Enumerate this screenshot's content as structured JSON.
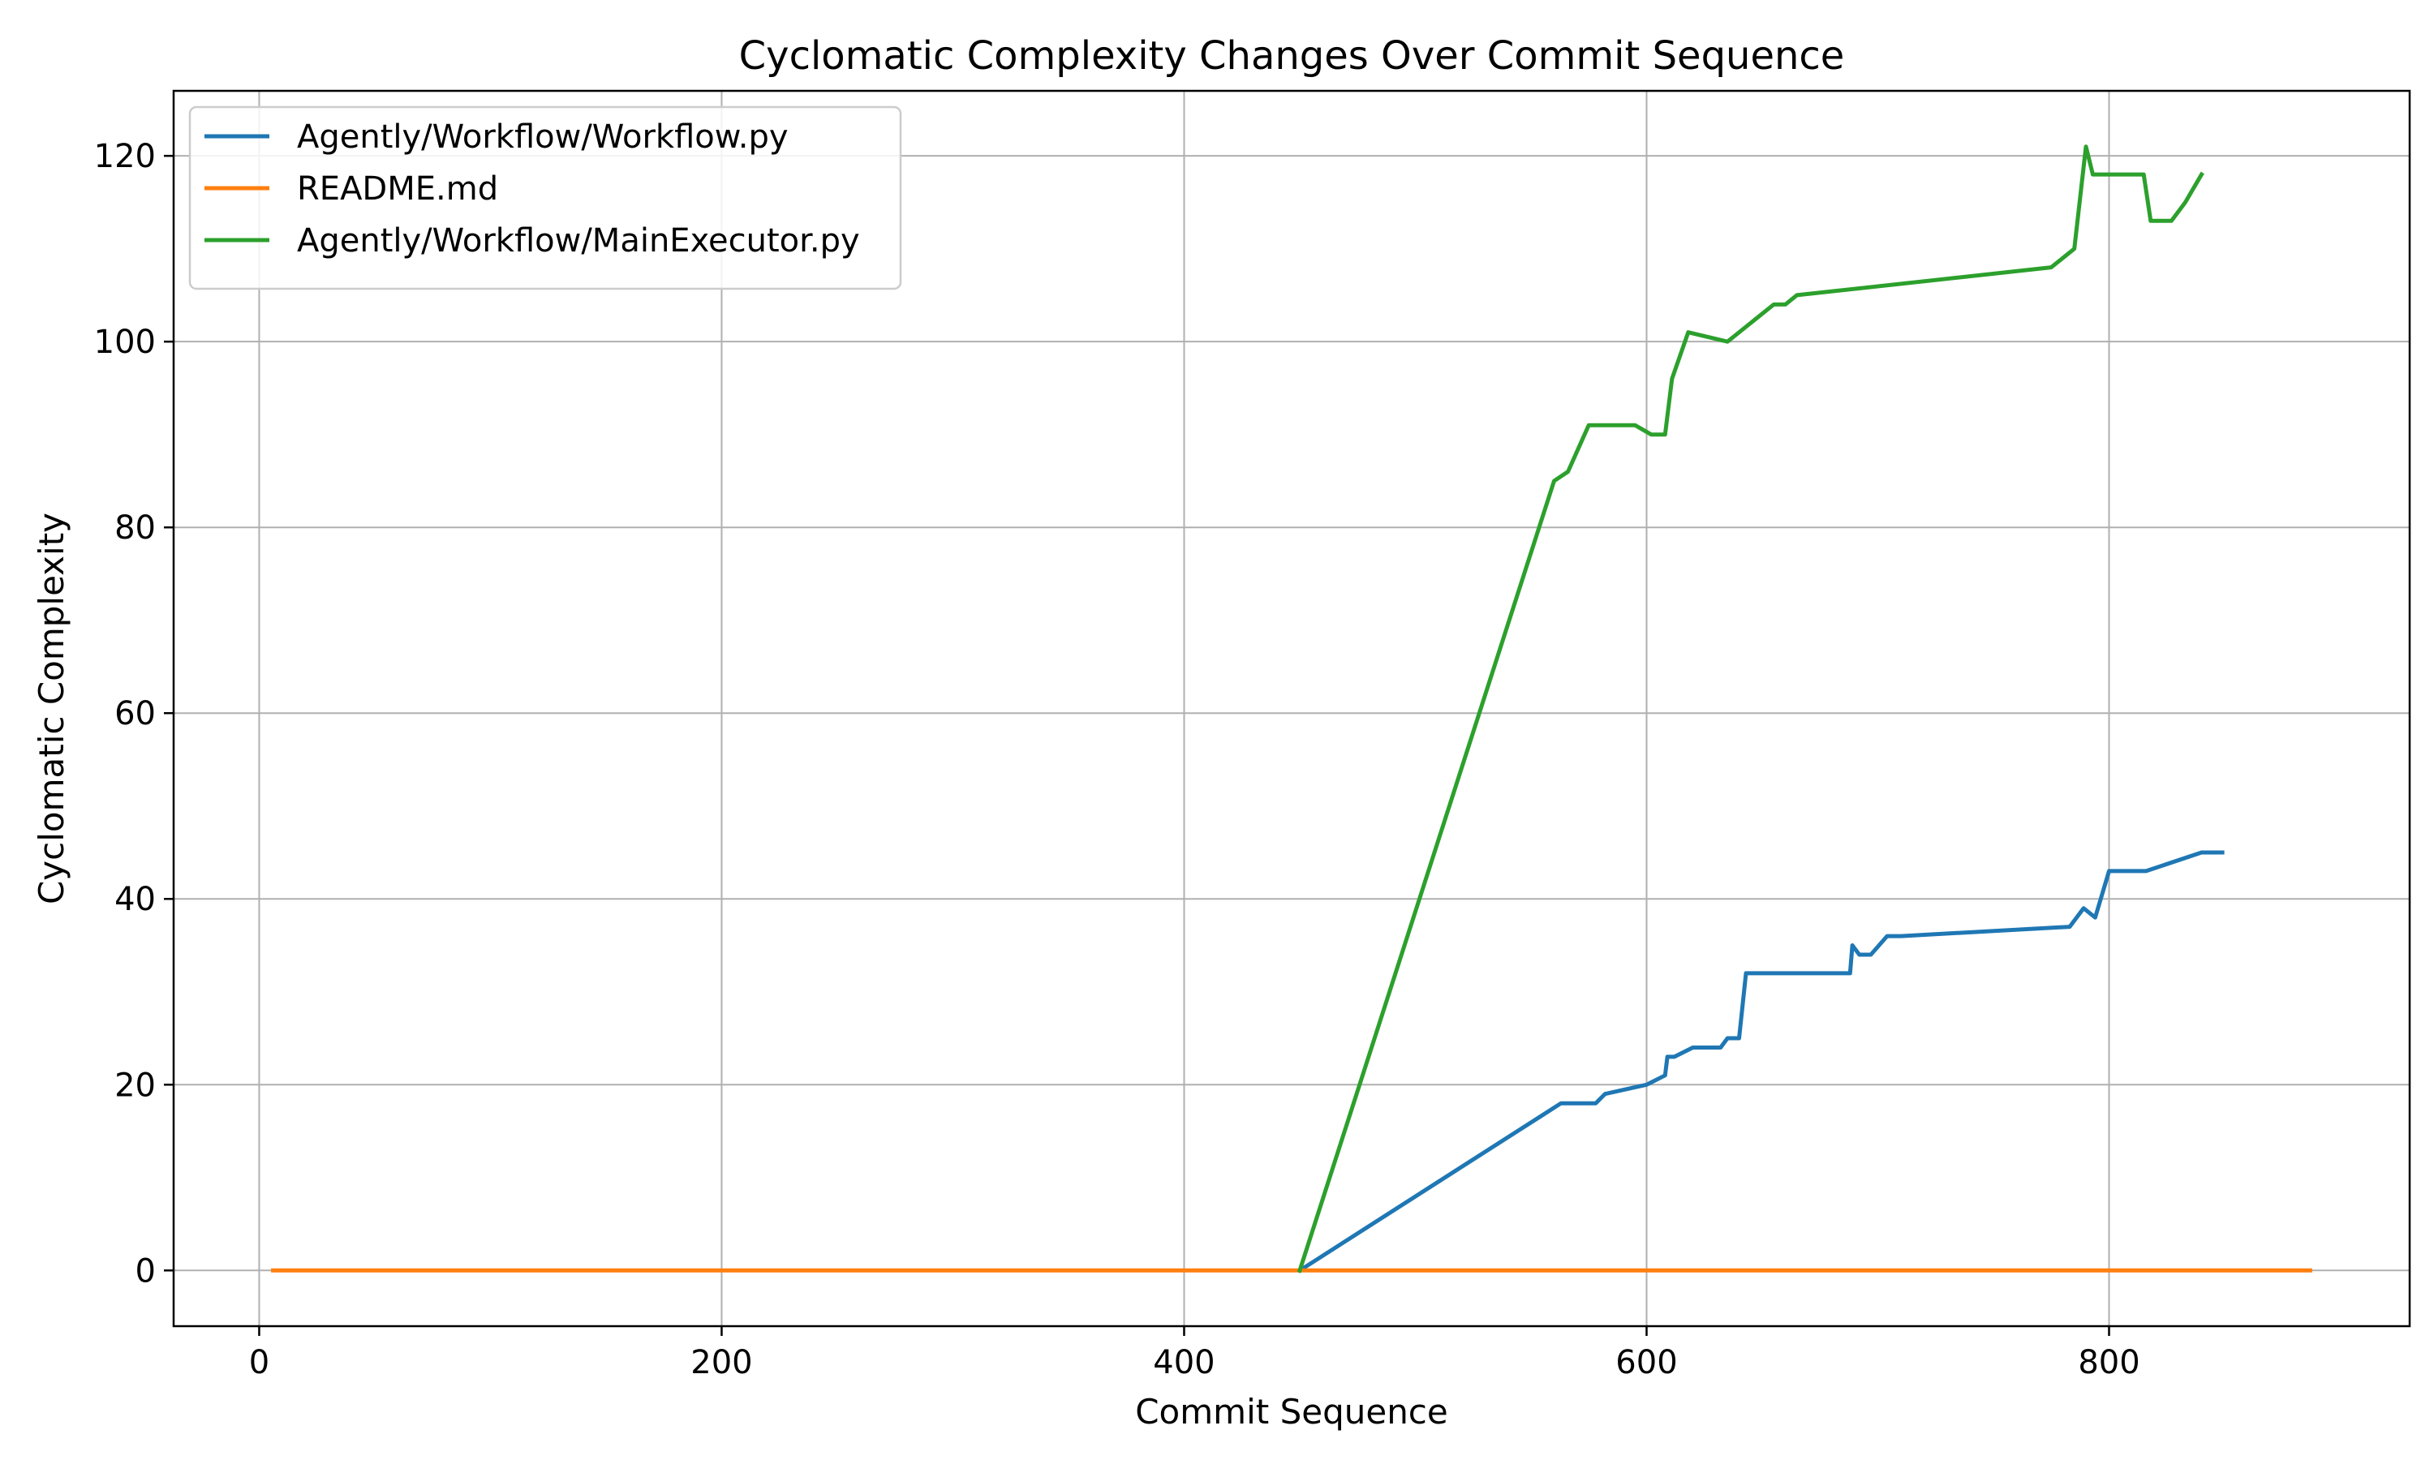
{
  "chart_data": {
    "type": "line",
    "title": "Cyclomatic Complexity Changes Over Commit Sequence",
    "xlabel": "Commit Sequence",
    "ylabel": "Cyclomatic Complexity",
    "xlim": [
      -37,
      930
    ],
    "ylim": [
      -6,
      127
    ],
    "xticks": [
      0,
      200,
      400,
      600,
      800
    ],
    "yticks": [
      0,
      20,
      40,
      60,
      80,
      100,
      120
    ],
    "grid": true,
    "legend_position": "top-left",
    "series": [
      {
        "name": "Agently/Workflow/Workflow.py",
        "color": "#1f77b4",
        "x": [
          450,
          563,
          578,
          582,
          600,
          608,
          609,
          612,
          620,
          632,
          635,
          640,
          643,
          688,
          689,
          692,
          697,
          704,
          710,
          783,
          789,
          794,
          800,
          816,
          840,
          849
        ],
        "y": [
          0,
          18,
          18,
          19,
          20,
          21,
          23,
          23,
          24,
          24,
          25,
          25,
          32,
          32,
          35,
          34,
          34,
          36,
          36,
          37,
          39,
          38,
          43,
          43,
          45,
          45
        ]
      },
      {
        "name": "README.md",
        "color": "#ff7f0e",
        "x": [
          6,
          150,
          300,
          450,
          600,
          750,
          887
        ],
        "y": [
          0,
          0,
          0,
          0,
          0,
          0,
          0
        ]
      },
      {
        "name": "Agently/Workflow/MainExecutor.py",
        "color": "#2ca02c",
        "x": [
          450,
          560,
          566,
          575,
          595,
          602,
          608,
          611,
          618,
          635,
          655,
          660,
          665,
          775,
          785,
          790,
          793,
          800,
          815,
          818,
          827,
          833,
          840
        ],
        "y": [
          0,
          85,
          86,
          91,
          91,
          90,
          90,
          96,
          101,
          100,
          104,
          104,
          105,
          108,
          110,
          121,
          118,
          118,
          118,
          113,
          113,
          115,
          118
        ]
      }
    ]
  }
}
